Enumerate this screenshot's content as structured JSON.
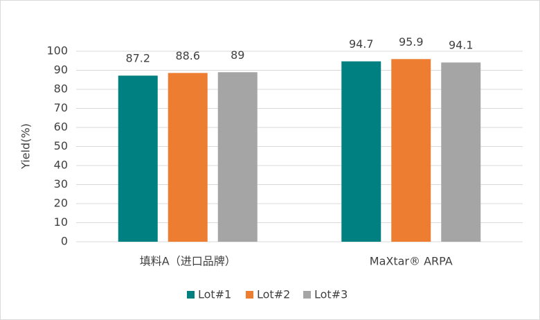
{
  "chart_data": {
    "type": "bar",
    "y_label": "Yield(%)",
    "categories": [
      "填料A（进口品牌）",
      "MaXtar® ARPA"
    ],
    "series": [
      {
        "name": "Lot#1",
        "color": "#008080",
        "values": [
          87.2,
          94.7
        ]
      },
      {
        "name": "Lot#2",
        "color": "#ED7D31",
        "values": [
          88.6,
          95.9
        ]
      },
      {
        "name": "Lot#3",
        "color": "#A5A5A5",
        "values": [
          89,
          94.1
        ]
      }
    ],
    "ylim": [
      0,
      100
    ],
    "yticks": [
      0,
      10,
      20,
      30,
      40,
      50,
      60,
      70,
      80,
      90,
      100
    ],
    "grid": true,
    "legend": "bottom"
  }
}
